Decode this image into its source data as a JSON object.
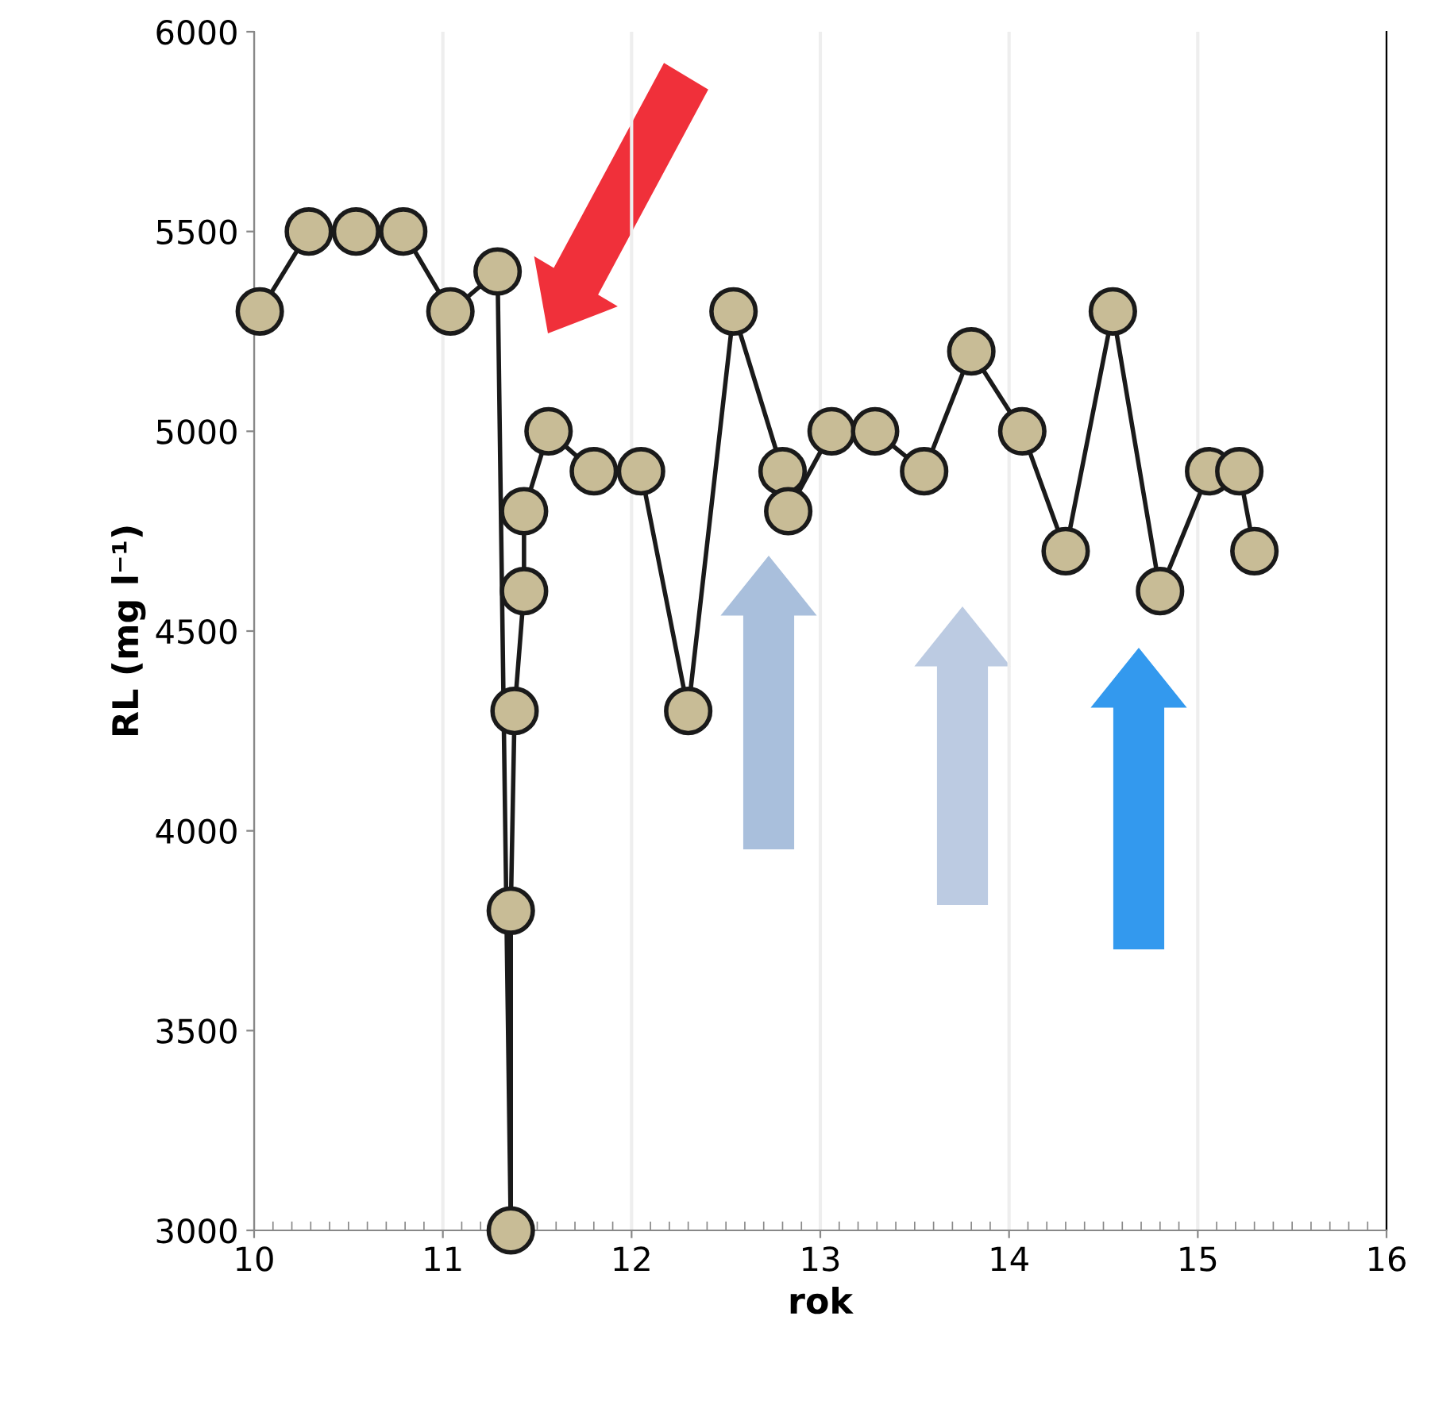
{
  "chart_data": {
    "type": "line",
    "xlabel": "rok",
    "ylabel": "RL (mg l⁻¹)",
    "x": [
      10.03,
      10.29,
      10.54,
      10.79,
      11.04,
      11.29,
      11.36,
      11.36,
      11.38,
      11.43,
      11.43,
      11.56,
      11.8,
      12.05,
      12.3,
      12.54,
      12.8,
      12.83,
      13.06,
      13.29,
      13.55,
      13.8,
      14.07,
      14.3,
      14.55,
      14.8,
      15.06,
      15.22,
      15.3
    ],
    "series": [
      {
        "color": "#c8bc96",
        "values": [
          5300,
          5500,
          5500,
          5500,
          5300,
          5400,
          3000,
          3800,
          4300,
          4600,
          4800,
          5000,
          4900,
          4900,
          4300,
          5300,
          4900,
          4800,
          5000,
          5000,
          4900,
          5200,
          5000,
          4700,
          5300,
          4600,
          4900,
          4900,
          4700
        ]
      }
    ],
    "xlim": [
      10,
      16
    ],
    "xticks": [
      10,
      11,
      12,
      13,
      14,
      15,
      16
    ],
    "ylim": [
      3000,
      6000
    ],
    "yticks": [
      3000,
      3500,
      4000,
      4500,
      5000,
      5500,
      6000
    ],
    "grid": "x",
    "marker": "circle",
    "line_style": "solid"
  }
}
